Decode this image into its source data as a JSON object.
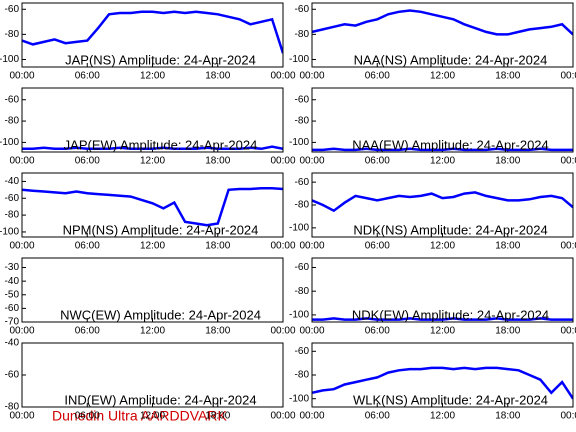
{
  "chart_data": [
    {
      "type": "line",
      "title": "JAP(NS) Amplitude: 24-Apr-2024",
      "x": [
        0,
        1,
        2,
        3,
        4,
        5,
        6,
        7,
        8,
        9,
        10,
        11,
        12,
        13,
        14,
        15,
        16,
        17,
        18,
        19,
        20,
        21,
        22,
        23,
        24
      ],
      "xlim": [
        0,
        24
      ],
      "xticks": [
        {
          "value": 0,
          "label": "00:00"
        },
        {
          "value": 6,
          "label": "06:00"
        },
        {
          "value": 12,
          "label": "12:00"
        },
        {
          "value": 18,
          "label": "18:00"
        },
        {
          "value": 24,
          "label": "00:00"
        }
      ],
      "ylim": [
        -106,
        -55
      ],
      "yticks": [
        -60,
        -80,
        -100
      ],
      "series": [
        {
          "color": "#0000ff",
          "values": [
            -85,
            -88,
            -86,
            -84,
            -87,
            -86,
            -85,
            -75,
            -64,
            -63,
            -63,
            -62,
            -62,
            -63,
            -62,
            -63,
            -62,
            -63,
            -64,
            -66,
            -68,
            -72,
            -70,
            -68,
            -95
          ]
        }
      ]
    },
    {
      "type": "line",
      "title": "NAA(NS) Amplitude: 24-Apr-2024",
      "x": [
        0,
        1,
        2,
        3,
        4,
        5,
        6,
        7,
        8,
        9,
        10,
        11,
        12,
        13,
        14,
        15,
        16,
        17,
        18,
        19,
        20,
        21,
        22,
        23,
        24
      ],
      "xlim": [
        0,
        24
      ],
      "xticks": [
        {
          "value": 0,
          "label": "00:00"
        },
        {
          "value": 6,
          "label": "06:00"
        },
        {
          "value": 12,
          "label": "12:00"
        },
        {
          "value": 18,
          "label": "18:00"
        },
        {
          "value": 24,
          "label": "00:00"
        }
      ],
      "ylim": [
        -106,
        -55
      ],
      "yticks": [
        -60,
        -80,
        -100
      ],
      "series": [
        {
          "color": "#0000ff",
          "values": [
            -78,
            -76,
            -74,
            -72,
            -73,
            -70,
            -68,
            -64,
            -62,
            -61,
            -62,
            -64,
            -66,
            -68,
            -72,
            -75,
            -78,
            -80,
            -80,
            -78,
            -76,
            -75,
            -74,
            -72,
            -80
          ]
        }
      ]
    },
    {
      "type": "line",
      "title": "JAP(EW) Amplitude: 24-Apr-2024",
      "x": [
        0,
        1,
        2,
        3,
        4,
        5,
        6,
        7,
        8,
        9,
        10,
        11,
        12,
        13,
        14,
        15,
        16,
        17,
        18,
        19,
        20,
        21,
        22,
        23,
        24
      ],
      "xlim": [
        0,
        24
      ],
      "xticks": [
        {
          "value": 0,
          "label": "00:00"
        },
        {
          "value": 6,
          "label": "06:00"
        },
        {
          "value": 12,
          "label": "12:00"
        },
        {
          "value": 18,
          "label": "18:00"
        },
        {
          "value": 24,
          "label": "00:00"
        }
      ],
      "ylim": [
        -109,
        -49
      ],
      "yticks": [
        -60,
        -80,
        -100
      ],
      "series": [
        {
          "color": "#0000ff",
          "values": [
            -106,
            -106,
            -105,
            -106,
            -106,
            -105,
            -106,
            -106,
            -106,
            -105,
            -106,
            -106,
            -106,
            -105,
            -106,
            -106,
            -106,
            -105,
            -106,
            -106,
            -106,
            -105,
            -106,
            -104,
            -106
          ]
        }
      ]
    },
    {
      "type": "line",
      "title": "NAA(EW) Amplitude: 24-Apr-2024",
      "x": [
        0,
        1,
        2,
        3,
        4,
        5,
        6,
        7,
        8,
        9,
        10,
        11,
        12,
        13,
        14,
        15,
        16,
        17,
        18,
        19,
        20,
        21,
        22,
        23,
        24
      ],
      "xlim": [
        0,
        24
      ],
      "xticks": [
        {
          "value": 0,
          "label": "00:00"
        },
        {
          "value": 6,
          "label": "06:00"
        },
        {
          "value": 12,
          "label": "12:00"
        },
        {
          "value": 18,
          "label": "18:00"
        },
        {
          "value": 24,
          "label": "00:00"
        }
      ],
      "ylim": [
        -109,
        -49
      ],
      "yticks": [
        -60,
        -80,
        -100
      ],
      "series": [
        {
          "color": "#0000ff",
          "values": [
            -107,
            -107,
            -106,
            -107,
            -107,
            -106,
            -107,
            -107,
            -107,
            -106,
            -107,
            -107,
            -107,
            -106,
            -107,
            -107,
            -107,
            -106,
            -107,
            -107,
            -107,
            -106,
            -107,
            -107,
            -107
          ]
        }
      ]
    },
    {
      "type": "line",
      "title": "NPM(NS) Amplitude: 24-Apr-2024",
      "x": [
        0,
        1,
        2,
        3,
        4,
        5,
        6,
        7,
        8,
        9,
        10,
        11,
        12,
        13,
        14,
        15,
        16,
        17,
        18,
        19,
        20,
        21,
        22,
        23,
        24
      ],
      "xlim": [
        0,
        24
      ],
      "xticks": [
        {
          "value": 0,
          "label": "00:00"
        },
        {
          "value": 6,
          "label": "06:00"
        },
        {
          "value": 12,
          "label": "12:00"
        },
        {
          "value": 18,
          "label": "18:00"
        },
        {
          "value": 24,
          "label": "00:00"
        }
      ],
      "ylim": [
        -106,
        -30
      ],
      "yticks": [
        -40,
        -60,
        -80,
        -100
      ],
      "series": [
        {
          "color": "#0000ff",
          "values": [
            -50,
            -51,
            -52,
            -53,
            -54,
            -52,
            -54,
            -55,
            -56,
            -57,
            -58,
            -62,
            -66,
            -72,
            -65,
            -88,
            -90,
            -92,
            -90,
            -50,
            -49,
            -49,
            -48,
            -48,
            -49
          ]
        }
      ]
    },
    {
      "type": "line",
      "title": "NDK(NS) Amplitude: 24-Apr-2024",
      "x": [
        0,
        1,
        2,
        3,
        4,
        5,
        6,
        7,
        8,
        9,
        10,
        11,
        12,
        13,
        14,
        15,
        16,
        17,
        18,
        19,
        20,
        21,
        22,
        23,
        24
      ],
      "xlim": [
        0,
        24
      ],
      "xticks": [
        {
          "value": 0,
          "label": "00:00"
        },
        {
          "value": 6,
          "label": "06:00"
        },
        {
          "value": 12,
          "label": "12:00"
        },
        {
          "value": 18,
          "label": "18:00"
        },
        {
          "value": 24,
          "label": "00:00"
        }
      ],
      "ylim": [
        -108,
        -52
      ],
      "yticks": [
        -60,
        -80,
        -100
      ],
      "series": [
        {
          "color": "#0000ff",
          "values": [
            -76,
            -80,
            -85,
            -78,
            -72,
            -74,
            -76,
            -74,
            -72,
            -73,
            -72,
            -70,
            -74,
            -73,
            -70,
            -69,
            -72,
            -74,
            -76,
            -76,
            -75,
            -73,
            -72,
            -74,
            -82
          ]
        }
      ]
    },
    {
      "type": "line",
      "title": "NWC(EW) Amplitude: 24-Apr-2024",
      "x": [
        0,
        1,
        2,
        3,
        4,
        5,
        6,
        7,
        8,
        9,
        10,
        11,
        12,
        13,
        14,
        15,
        16,
        17,
        18,
        19,
        20,
        21,
        22,
        23,
        24
      ],
      "xlim": [
        0,
        24
      ],
      "xticks": [
        {
          "value": 0,
          "label": "00:00"
        },
        {
          "value": 6,
          "label": "06:00"
        },
        {
          "value": 12,
          "label": "12:00"
        },
        {
          "value": 18,
          "label": "18:00"
        },
        {
          "value": 24,
          "label": "00:00"
        }
      ],
      "ylim": [
        -70,
        -23
      ],
      "yticks": [
        -30,
        -40,
        -50,
        -60,
        -70
      ],
      "series": [
        {
          "color": "#0000ff",
          "values": [
            null,
            null,
            null,
            null,
            null,
            null,
            null,
            null,
            null,
            null,
            null,
            null,
            null,
            null,
            null,
            null,
            null,
            null,
            null,
            null,
            null,
            null,
            null,
            null,
            null
          ]
        }
      ]
    },
    {
      "type": "line",
      "title": "NDK(EW) Amplitude: 24-Apr-2024",
      "x": [
        0,
        1,
        2,
        3,
        4,
        5,
        6,
        7,
        8,
        9,
        10,
        11,
        12,
        13,
        14,
        15,
        16,
        17,
        18,
        19,
        20,
        21,
        22,
        23,
        24
      ],
      "xlim": [
        0,
        24
      ],
      "xticks": [
        {
          "value": 0,
          "label": "00:00"
        },
        {
          "value": 6,
          "label": "06:00"
        },
        {
          "value": 12,
          "label": "12:00"
        },
        {
          "value": 18,
          "label": "18:00"
        },
        {
          "value": 24,
          "label": "00:00"
        }
      ],
      "ylim": [
        -106,
        -52
      ],
      "yticks": [
        -60,
        -80,
        -100
      ],
      "series": [
        {
          "color": "#0000ff",
          "values": [
            -104,
            -104,
            -103,
            -104,
            -104,
            -103,
            -104,
            -104,
            -104,
            -103,
            -104,
            -104,
            -104,
            -103,
            -104,
            -104,
            -104,
            -103,
            -104,
            -104,
            -104,
            -103,
            -104,
            -104,
            -104
          ]
        }
      ]
    },
    {
      "type": "line",
      "title": "IND(EW) Amplitude: 24-Apr-2024",
      "x": [
        0,
        1,
        2,
        3,
        4,
        5,
        6,
        7,
        8,
        9,
        10,
        11,
        12,
        13,
        14,
        15,
        16,
        17,
        18,
        19,
        20,
        21,
        22,
        23,
        24
      ],
      "xlim": [
        0,
        24
      ],
      "xticks": [
        {
          "value": 0,
          "label": "00:00"
        },
        {
          "value": 6,
          "label": "06:00"
        },
        {
          "value": 12,
          "label": "12:00"
        },
        {
          "value": 18,
          "label": "18:00"
        },
        {
          "value": 24,
          "label": "00:00"
        }
      ],
      "ylim": [
        -80,
        -40
      ],
      "yticks": [
        -40,
        -60,
        -80
      ],
      "series": [
        {
          "color": "#0000ff",
          "values": [
            null,
            null,
            null,
            null,
            null,
            null,
            null,
            null,
            null,
            null,
            null,
            null,
            null,
            null,
            null,
            null,
            null,
            null,
            null,
            null,
            null,
            null,
            null,
            null,
            null
          ]
        }
      ]
    },
    {
      "type": "line",
      "title": "WLK(NS) Amplitude: 24-Apr-2024",
      "x": [
        0,
        1,
        2,
        3,
        4,
        5,
        6,
        7,
        8,
        9,
        10,
        11,
        12,
        13,
        14,
        15,
        16,
        17,
        18,
        19,
        20,
        21,
        22,
        23,
        24
      ],
      "xlim": [
        0,
        24
      ],
      "xticks": [
        {
          "value": 0,
          "label": "00:00"
        },
        {
          "value": 6,
          "label": "06:00"
        },
        {
          "value": 12,
          "label": "12:00"
        },
        {
          "value": 18,
          "label": "18:00"
        },
        {
          "value": 24,
          "label": "00:00"
        }
      ],
      "ylim": [
        -107,
        -53
      ],
      "yticks": [
        -60,
        -80,
        -100
      ],
      "series": [
        {
          "color": "#0000ff",
          "values": [
            -95,
            -93,
            -92,
            -88,
            -86,
            -84,
            -82,
            -78,
            -76,
            -75,
            -75,
            -74,
            -74,
            -75,
            -74,
            -75,
            -74,
            -74,
            -75,
            -76,
            -80,
            -84,
            -95,
            -86,
            -100
          ]
        }
      ]
    }
  ],
  "footer": "Dunedin Ultra AARDDVARK"
}
